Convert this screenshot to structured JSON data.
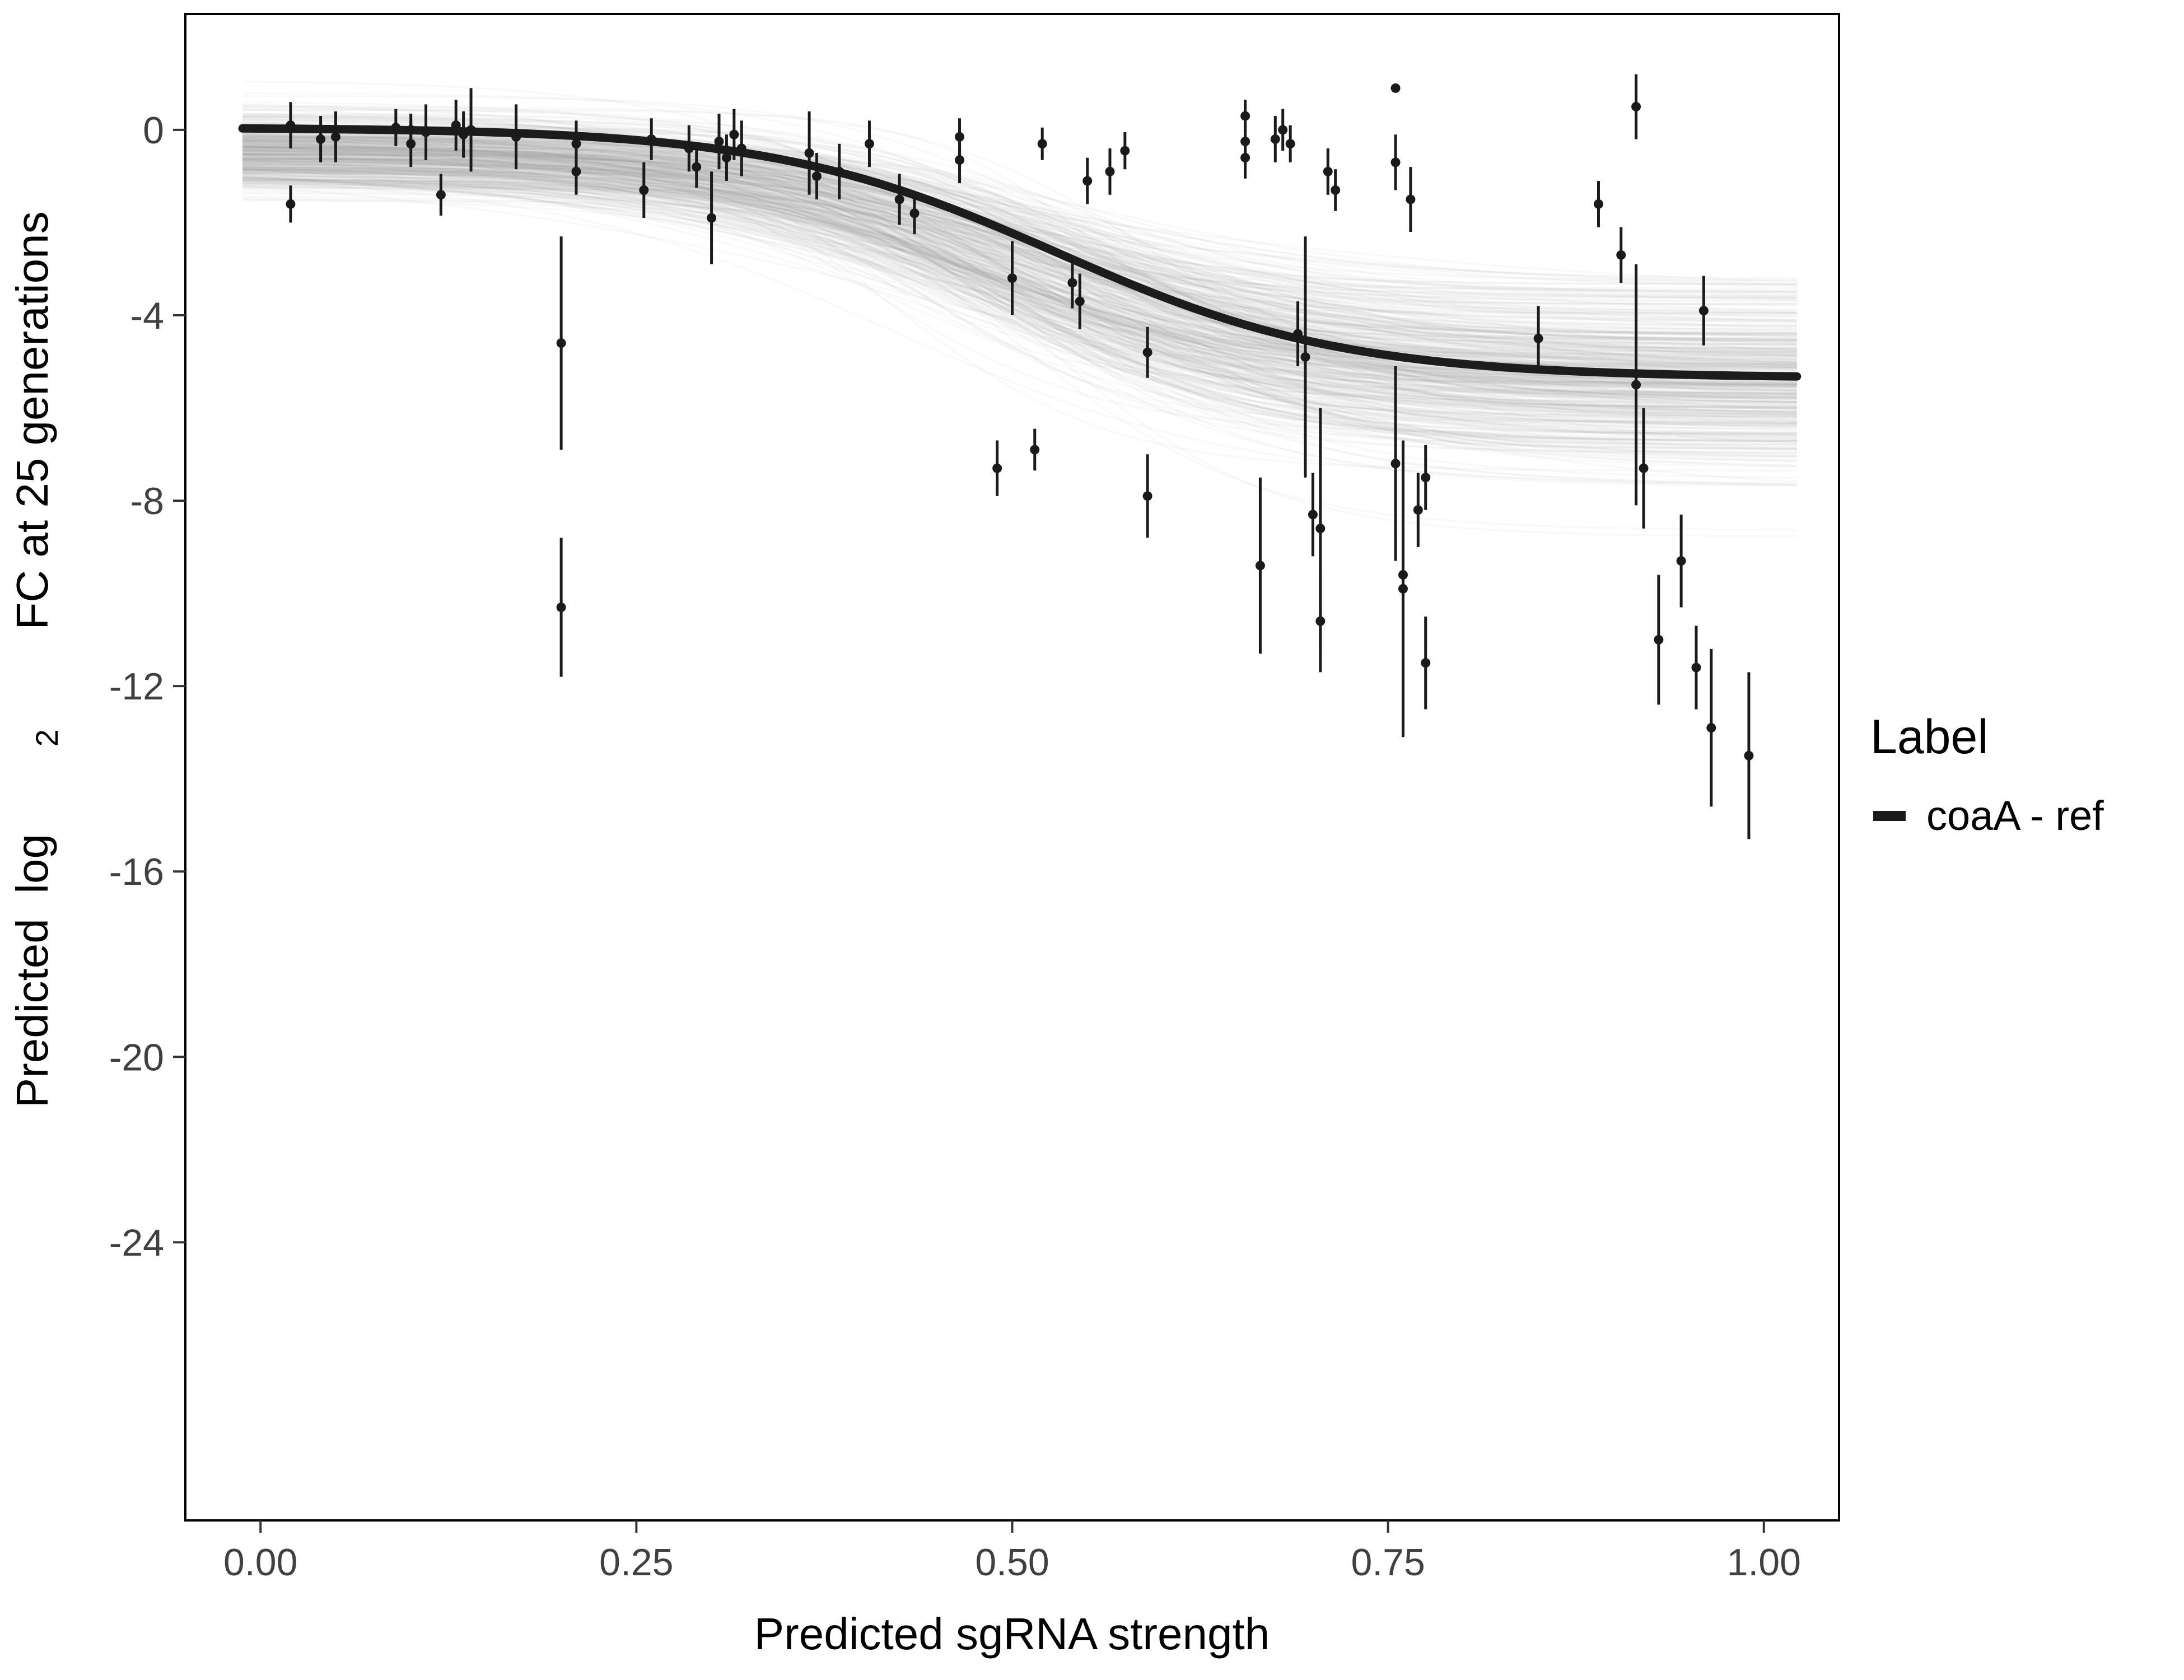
{
  "figure": {
    "background": "#ffffff",
    "panel_border_color": "#000000",
    "tick_color": "#333333",
    "tick_label_color": "#404040",
    "title_color": "#000000"
  },
  "chart_data": {
    "type": "scatter",
    "title": "",
    "xlabel": "Predicted sgRNA strength",
    "ylabel": "Predicted log2 FC at 25 generations",
    "ylabel_parts": {
      "prefix": "Predicted  log",
      "sub": "2",
      "suffix": " FC at 25 generations"
    },
    "xlim": [
      -0.05,
      1.05
    ],
    "ylim": [
      -30,
      2.5
    ],
    "grid": false,
    "legend_position": "right",
    "x_ticks": [
      {
        "value": 0.0,
        "label": "0.00"
      },
      {
        "value": 0.25,
        "label": "0.25"
      },
      {
        "value": 0.5,
        "label": "0.50"
      },
      {
        "value": 0.75,
        "label": "0.75"
      },
      {
        "value": 1.0,
        "label": "1.00"
      }
    ],
    "y_ticks": [
      {
        "value": 0,
        "label": "0"
      },
      {
        "value": -4,
        "label": "-4"
      },
      {
        "value": -8,
        "label": "-8"
      },
      {
        "value": -12,
        "label": "-12"
      },
      {
        "value": -16,
        "label": "-16"
      },
      {
        "value": -20,
        "label": "-20"
      },
      {
        "value": -24,
        "label": "-24"
      }
    ],
    "legend": {
      "title": "Label",
      "entries": [
        {
          "label": "coaA - ref",
          "color": "#1a1a1a"
        }
      ]
    },
    "point_color": "#1a1a1a",
    "fit_curve": {
      "top": 0.05,
      "bottom": -5.35,
      "midpoint": 0.53,
      "slope": 10.5,
      "color": "#1c1c1c",
      "width": 15
    },
    "uncertainty_draws": {
      "count": 420,
      "seed": 42,
      "color": "#9e9e9e",
      "opacity": 0.06,
      "top_mean": -0.45,
      "top_sd": 0.45,
      "bottom_mean": -5.5,
      "bottom_sd": 1.0,
      "midpoint_mean": 0.5,
      "midpoint_sd": 0.045,
      "slope_mean": 11,
      "slope_sd": 2.5
    },
    "points": [
      [
        0.02,
        0.1,
        0.5
      ],
      [
        0.02,
        -1.6,
        0.4
      ],
      [
        0.04,
        -0.2,
        0.5
      ],
      [
        0.05,
        -0.15,
        0.55
      ],
      [
        0.09,
        0.05,
        0.4
      ],
      [
        0.1,
        -0.3,
        0.5
      ],
      [
        0.1,
        0.0,
        0.35
      ],
      [
        0.11,
        -0.05,
        0.6
      ],
      [
        0.12,
        -1.4,
        0.45
      ],
      [
        0.13,
        0.1,
        0.55
      ],
      [
        0.135,
        -0.1,
        0.5
      ],
      [
        0.14,
        0.0,
        0.9
      ],
      [
        0.17,
        -0.15,
        0.7
      ],
      [
        0.2,
        -4.6,
        2.3
      ],
      [
        0.2,
        -10.3,
        1.5
      ],
      [
        0.21,
        -0.3,
        0.5
      ],
      [
        0.21,
        -0.9,
        0.5
      ],
      [
        0.255,
        -1.3,
        0.6
      ],
      [
        0.26,
        -0.2,
        0.45
      ],
      [
        0.285,
        -0.4,
        0.5
      ],
      [
        0.29,
        -0.8,
        0.45
      ],
      [
        0.3,
        -1.9,
        1.0
      ],
      [
        0.305,
        -0.25,
        0.6
      ],
      [
        0.31,
        -0.6,
        0.5
      ],
      [
        0.315,
        -0.1,
        0.55
      ],
      [
        0.32,
        -0.4,
        0.6
      ],
      [
        0.365,
        -0.5,
        0.9
      ],
      [
        0.37,
        -1.0,
        0.5
      ],
      [
        0.385,
        -0.9,
        0.6
      ],
      [
        0.405,
        -0.3,
        0.5
      ],
      [
        0.425,
        -1.5,
        0.55
      ],
      [
        0.435,
        -1.8,
        0.45
      ],
      [
        0.465,
        -0.15,
        0.4
      ],
      [
        0.465,
        -0.65,
        0.5
      ],
      [
        0.49,
        -7.3,
        0.6
      ],
      [
        0.5,
        -3.2,
        0.8
      ],
      [
        0.515,
        -6.9,
        0.45
      ],
      [
        0.52,
        -0.3,
        0.35
      ],
      [
        0.54,
        -3.3,
        0.55
      ],
      [
        0.545,
        -3.7,
        0.6
      ],
      [
        0.55,
        -1.1,
        0.5
      ],
      [
        0.565,
        -0.9,
        0.5
      ],
      [
        0.575,
        -0.45,
        0.4
      ],
      [
        0.59,
        -4.8,
        0.55
      ],
      [
        0.59,
        -7.9,
        0.9
      ],
      [
        0.655,
        0.3,
        0.35
      ],
      [
        0.655,
        -0.25,
        0.4
      ],
      [
        0.655,
        -0.6,
        0.45
      ],
      [
        0.665,
        -9.4,
        1.9
      ],
      [
        0.675,
        -0.2,
        0.5
      ],
      [
        0.68,
        0.0,
        0.45
      ],
      [
        0.685,
        -0.3,
        0.4
      ],
      [
        0.69,
        -4.4,
        0.7
      ],
      [
        0.695,
        -4.9,
        2.6
      ],
      [
        0.7,
        -8.3,
        0.9
      ],
      [
        0.705,
        -8.6,
        2.6
      ],
      [
        0.705,
        -10.6,
        1.1
      ],
      [
        0.71,
        -0.9,
        0.5
      ],
      [
        0.715,
        -1.3,
        0.45
      ],
      [
        0.755,
        0.9,
        0.0
      ],
      [
        0.755,
        -0.7,
        0.6
      ],
      [
        0.755,
        -7.2,
        2.1
      ],
      [
        0.76,
        -9.6,
        0.9
      ],
      [
        0.76,
        -9.9,
        3.2
      ],
      [
        0.765,
        -1.5,
        0.7
      ],
      [
        0.77,
        -8.2,
        0.8
      ],
      [
        0.775,
        -11.5,
        1.0
      ],
      [
        0.775,
        -7.5,
        0.7
      ],
      [
        0.85,
        -4.5,
        0.7
      ],
      [
        0.89,
        -1.6,
        0.5
      ],
      [
        0.905,
        -2.7,
        0.6
      ],
      [
        0.915,
        0.5,
        0.7
      ],
      [
        0.915,
        -5.5,
        2.6
      ],
      [
        0.92,
        -7.3,
        1.3
      ],
      [
        0.93,
        -11.0,
        1.4
      ],
      [
        0.945,
        -9.3,
        1.0
      ],
      [
        0.955,
        -11.6,
        0.9
      ],
      [
        0.96,
        -3.9,
        0.75
      ],
      [
        0.965,
        -12.9,
        1.7
      ],
      [
        0.99,
        -13.5,
        1.8
      ]
    ]
  }
}
